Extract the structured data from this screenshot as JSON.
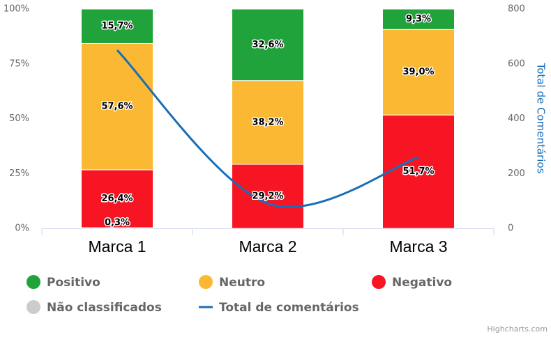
{
  "chart_data": {
    "type": "stacked-column-line",
    "categories": [
      "Marca 1",
      "Marca 2",
      "Marca 3"
    ],
    "series": [
      {
        "name": "Positivo",
        "type": "column",
        "color": "#1fa33a",
        "values": [
          15.7,
          32.6,
          9.3
        ],
        "value_labels": [
          "15,7%",
          "32,6%",
          "9,3%"
        ]
      },
      {
        "name": "Neutro",
        "type": "column",
        "color": "#fbb832",
        "values": [
          57.6,
          38.2,
          39.0
        ],
        "value_labels": [
          "57,6%",
          "38,2%",
          "39,0%"
        ]
      },
      {
        "name": "Negativo",
        "type": "column",
        "color": "#f71423",
        "values": [
          26.4,
          29.2,
          51.7
        ],
        "value_labels": [
          "26,4%",
          "29,2%",
          "51,7%"
        ]
      },
      {
        "name": "Não classificados",
        "type": "column",
        "color": "#cccccc",
        "values": [
          0.3,
          0,
          0
        ],
        "value_labels": [
          "0,3%",
          null,
          null
        ]
      },
      {
        "name": "Total de comentários",
        "type": "line",
        "axis": "y2",
        "color": "#1a6eb8",
        "values": [
          650,
          91,
          259
        ]
      }
    ],
    "ylim": [
      0,
      100
    ],
    "yticks": [
      {
        "value": 0,
        "label": "0%"
      },
      {
        "value": 25,
        "label": "25%"
      },
      {
        "value": 50,
        "label": "50%"
      },
      {
        "value": 75,
        "label": "75%"
      },
      {
        "value": 100,
        "label": "100%"
      }
    ],
    "y2lim": [
      0,
      800
    ],
    "y2ticks": [
      0,
      200,
      400,
      600,
      800
    ],
    "y2label": "Total de Comentários",
    "grid": false,
    "credits": "Highcharts.com"
  }
}
